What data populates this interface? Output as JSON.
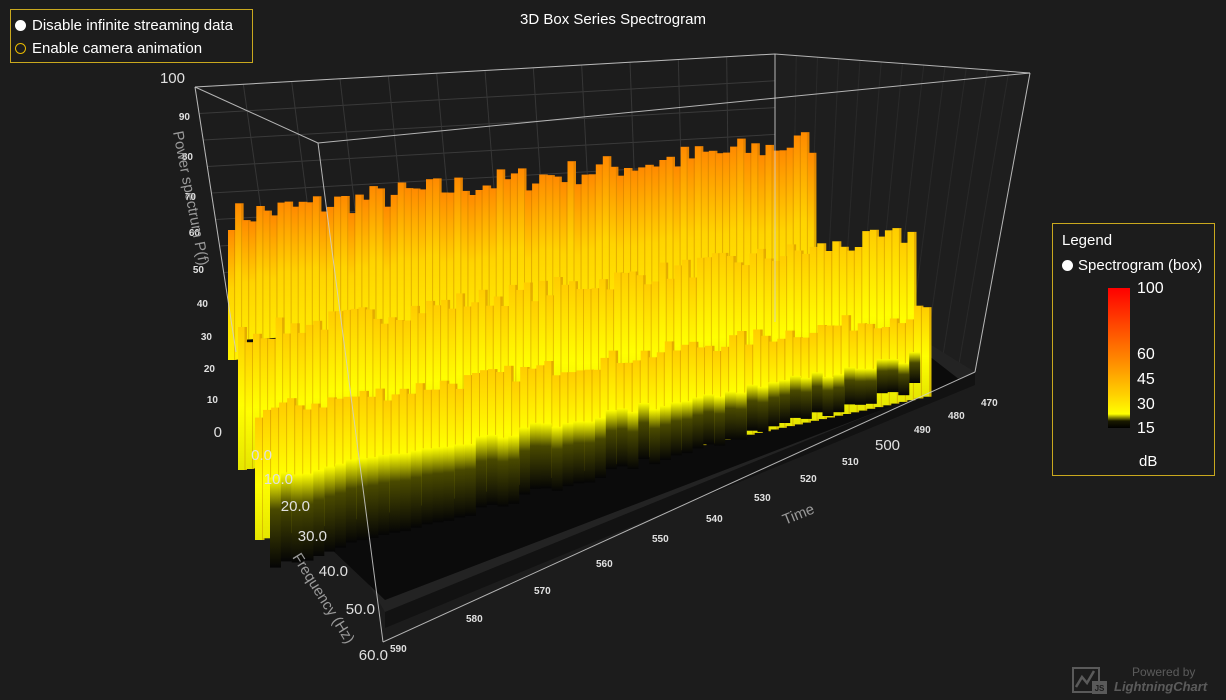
{
  "controls": {
    "streaming_label": "Disable infinite streaming data",
    "camera_label": "Enable camera animation"
  },
  "legend": {
    "title": "Legend",
    "entry": "Spectrogram (box)",
    "unit": "dB",
    "ticks": [
      "100",
      "60",
      "45",
      "30",
      "15"
    ]
  },
  "watermark": {
    "powered": "Powered by",
    "name": "LightningChart",
    "js": "JS"
  },
  "colors": {
    "background": "#1c1c1c",
    "panel_border": "#c9a81e",
    "grid": "#444444",
    "frame": "#d0d0d0"
  },
  "chart_data": {
    "type": "3d-box-spectrogram",
    "title": "3D Box Series Spectrogram",
    "xlabel": "Time",
    "ylabel": "Power spectrum P(f)",
    "zlabel": "Frequency (Hz)",
    "y_ticks": [
      "100",
      "90",
      "80",
      "70",
      "60",
      "50",
      "40",
      "30",
      "20",
      "10",
      "0"
    ],
    "time_ticks": [
      "590",
      "580",
      "570",
      "560",
      "550",
      "540",
      "530",
      "520",
      "510",
      "500",
      "490",
      "480",
      "470"
    ],
    "freq_ticks": [
      "0.0",
      "10.0",
      "20.0",
      "30.0",
      "40.0",
      "50.0",
      "60.0"
    ],
    "ylim": [
      0,
      100
    ],
    "freq_range": [
      0,
      60
    ],
    "time_range": [
      470,
      590
    ],
    "color_scale": [
      {
        "value": 15,
        "color": "#000000"
      },
      {
        "value": 30,
        "color": "#ffff00"
      },
      {
        "value": 45,
        "color": "#ffd000"
      },
      {
        "value": 60,
        "color": "#ff9000"
      },
      {
        "value": 100,
        "color": "#ff0000"
      }
    ]
  }
}
